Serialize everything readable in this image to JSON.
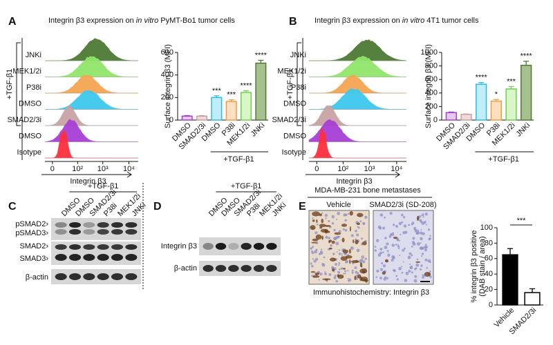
{
  "panels": [
    {
      "letter": "A",
      "title": [
        "Integrin β3 expression on ",
        "in vitro",
        " PyMT-Bo1 tumor cells"
      ],
      "histogram": {
        "side_label": "+TGF-β1",
        "rows": [
          "JNKi",
          "MEK1/2i",
          "P38i",
          "DMSO",
          "SMAD2/3i",
          "DMSO",
          "Isotype"
        ],
        "x_label": "Integrin β3",
        "x_ticks": [
          "0",
          "10²",
          "10³",
          "10⁴"
        ]
      }
    },
    {
      "letter": "B",
      "title": [
        "Integrin β3 expression on ",
        "in vitro",
        " 4T1 tumor cells"
      ],
      "histogram": {
        "side_label": "+TGF-β1",
        "rows": [
          "JNKi",
          "MEK1/2i",
          "P38i",
          "DMSO",
          "SMAD2/3i",
          "DMSO",
          "Isotype"
        ],
        "x_label": "Integrin β3",
        "x_ticks": [
          "0",
          "10²",
          "10³",
          "10⁴"
        ]
      }
    },
    {
      "letter": "C",
      "group_label": "+TGF-β1",
      "lanes": [
        "DMSO",
        "DMSO",
        "SMAD2/3i",
        "P38i",
        "MEK1/2i",
        "JNKi"
      ],
      "rows": [
        "pSMAD2›",
        "pSMAD3›",
        "SMAD2›",
        "SMAD3›",
        "β-actin"
      ]
    },
    {
      "letter": "D",
      "group_label": "+TGF-β1",
      "lanes": [
        "DMSO",
        "DMSO",
        "SMAD2/3i",
        "P38i",
        "MEK1/2i",
        "JNKi"
      ],
      "rows": [
        "Integrin β3",
        "β-actin"
      ]
    },
    {
      "letter": "E",
      "title": "MDA-MB-231 bone metastases",
      "images": [
        "Vehicle",
        "SMAD2/3i (SD-208)"
      ],
      "caption": "Immunohistochemistry: Integrin β3"
    }
  ],
  "chart_data": [
    {
      "type": "bar",
      "y_label": "Surface integrin β3 (MFI)",
      "categories": [
        "DMSO",
        "SMAD2/3i",
        "DMSO",
        "P38i",
        "MEK1/2i",
        "JNKi"
      ],
      "values": [
        35,
        35,
        200,
        165,
        245,
        505
      ],
      "errors": [
        5,
        4,
        15,
        15,
        15,
        25
      ],
      "colors": [
        "#e6c8f0",
        "#ecdada",
        "#bfeefa",
        "#fde0c2",
        "#d8f6c8",
        "#a8c090"
      ],
      "edge_colors": [
        "#a040d0",
        "#c8a0a0",
        "#30b8e8",
        "#f59a40",
        "#70d050",
        "#4a7a30"
      ],
      "annotations": [
        null,
        null,
        "***",
        "***",
        "****",
        "****"
      ],
      "group_label": "+TGF-β1",
      "ylim": [
        0,
        600
      ],
      "yticks": [
        0,
        200,
        400,
        600
      ]
    },
    {
      "type": "bar",
      "y_label": "Surface integrin β3 (MFI)",
      "categories": [
        "DMSO",
        "SMAD2/3i",
        "DMSO",
        "P38i",
        "MEK1/2i",
        "JNKi"
      ],
      "values": [
        110,
        85,
        530,
        280,
        460,
        810
      ],
      "errors": [
        8,
        5,
        25,
        25,
        35,
        60
      ],
      "colors": [
        "#e6c8f0",
        "#ecdada",
        "#bfeefa",
        "#fde0c2",
        "#d8f6c8",
        "#a8c090"
      ],
      "edge_colors": [
        "#a040d0",
        "#c8a0a0",
        "#30b8e8",
        "#f59a40",
        "#70d050",
        "#4a7a30"
      ],
      "annotations": [
        null,
        null,
        "****",
        "*",
        "***",
        "****"
      ],
      "group_label": "+TGF-β1",
      "ylim": [
        0,
        1000
      ],
      "yticks": [
        0,
        200,
        400,
        600,
        800,
        1000
      ]
    },
    {
      "type": "bar",
      "y_label": [
        "% integrin β3 positive",
        "(DAB stain / area)"
      ],
      "categories": [
        "Vehicle",
        "SMAD2/3i"
      ],
      "values": [
        65,
        16
      ],
      "errors": [
        8,
        5
      ],
      "colors": [
        "#000000",
        "#ffffff"
      ],
      "edge_colors": [
        "#000000",
        "#000000"
      ],
      "comparison_label": "***",
      "ylim": [
        0,
        100
      ],
      "yticks": [
        0,
        20,
        40,
        60,
        80,
        100
      ]
    }
  ]
}
